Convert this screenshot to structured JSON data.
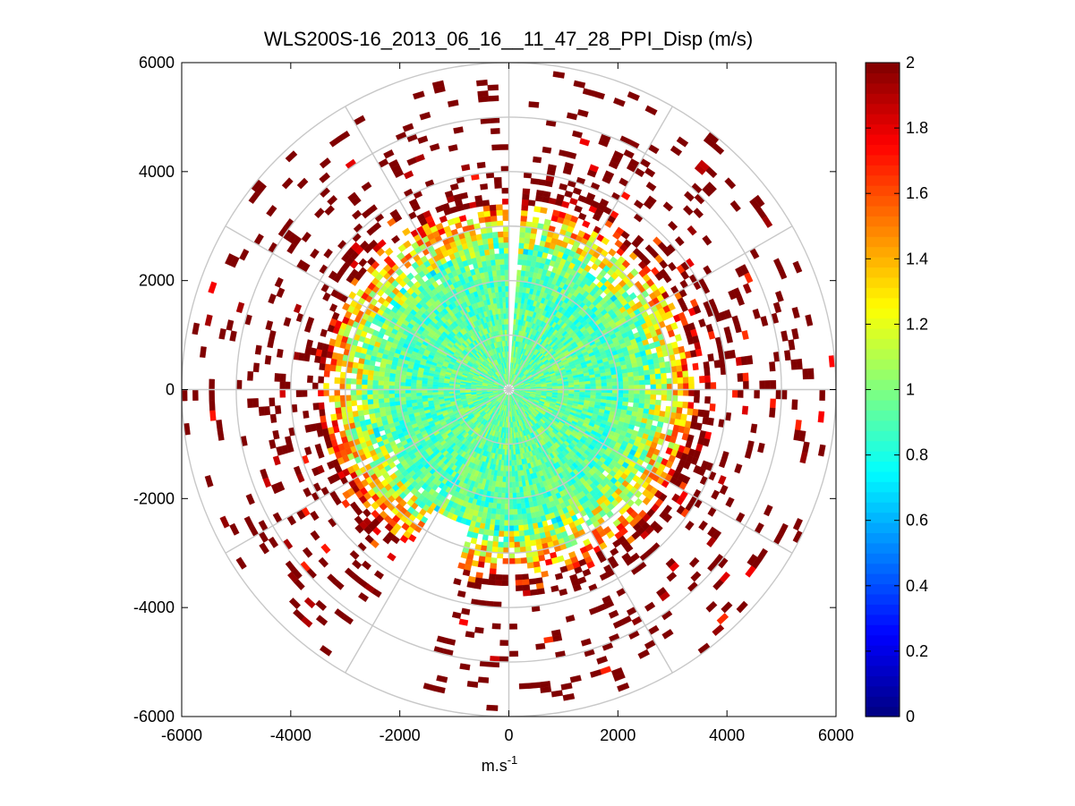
{
  "chart_data": {
    "type": "heatmap",
    "subtype": "polar PPI scan",
    "title": "WLS200S-16_2013_06_16__11_47_28_PPI_Disp (m/s)",
    "xlabel": "m.s",
    "xlabel_superscript": "-1",
    "ylabel": "",
    "xlim": [
      -6000,
      6000
    ],
    "ylim": [
      -6000,
      6000
    ],
    "xticks": [
      -6000,
      -4000,
      -2000,
      0,
      2000,
      4000,
      6000
    ],
    "yticks": [
      6000,
      4000,
      2000,
      0,
      -2000,
      -4000,
      -6000
    ],
    "xtick_labels": [
      "-6000",
      "-4000",
      "-2000",
      "0",
      "2000",
      "4000",
      "6000"
    ],
    "ytick_labels": [
      "6000",
      "4000",
      "2000",
      "0",
      "-2000",
      "-4000",
      "-6000"
    ],
    "range_rings_m": [
      1000,
      2000,
      3000,
      4000,
      5000,
      6000
    ],
    "spoke_angles_deg": [
      0,
      30,
      60,
      90,
      120,
      150,
      180,
      210,
      240,
      270,
      300,
      330
    ],
    "colormap": "jet",
    "clim": [
      0,
      2
    ],
    "colorbar_ticks": [
      0,
      0.2,
      0.4,
      0.6,
      0.8,
      1,
      1.2,
      1.4,
      1.6,
      1.8,
      2
    ],
    "colorbar_tick_labels": [
      "0",
      "0.2",
      "0.4",
      "0.6",
      "0.8",
      "1",
      "1.2",
      "1.4",
      "1.6",
      "1.8",
      "2"
    ],
    "field_profile": {
      "description": "Approximate dispersion value (m/s) by range: inner disk ~0.9-1.0, rising to ~1.2 near 3000 m, saturating at 2 beyond ~3500 m with sparse returns",
      "range_m": [
        0,
        1000,
        2000,
        2500,
        3000,
        3500,
        4000,
        5000,
        6000
      ],
      "typical_value": [
        0.95,
        0.95,
        0.9,
        1.0,
        1.3,
        1.8,
        2.0,
        2.0,
        2.0
      ],
      "coverage": [
        1.0,
        1.0,
        1.0,
        0.95,
        0.75,
        0.45,
        0.18,
        0.12,
        0.08
      ]
    }
  }
}
